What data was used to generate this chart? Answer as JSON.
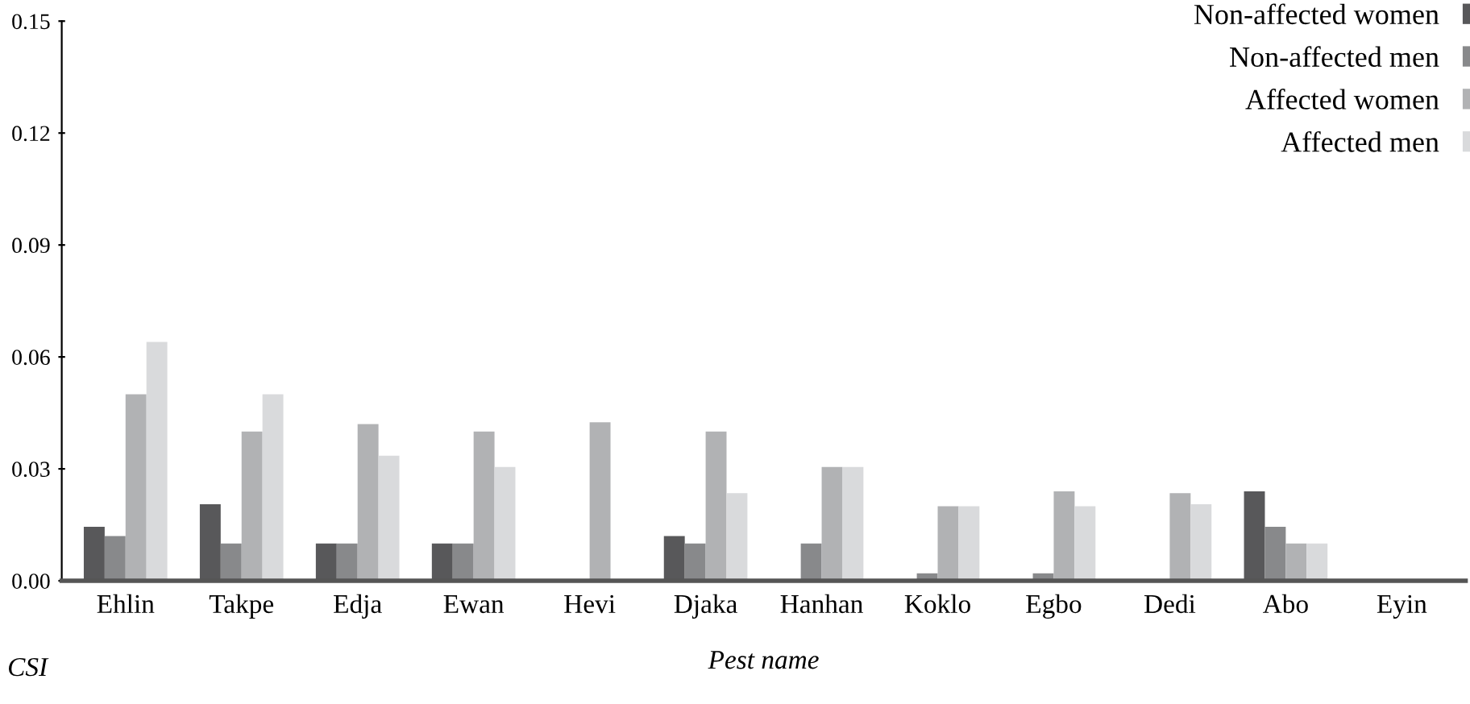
{
  "chart_data": {
    "type": "bar",
    "xlabel": "Pest name",
    "ylabel": "CSI",
    "categories": [
      "Ehlin",
      "Takpe",
      "Edja",
      "Ewan",
      "Hevi",
      "Djaka",
      "Hanhan",
      "Koklo",
      "Egbo",
      "Dedi",
      "Abo",
      "Eyin"
    ],
    "series": [
      {
        "name": "Non-affected women",
        "color": "#58585a",
        "values": [
          0.0145,
          0.0205,
          0.01,
          0.01,
          0,
          0.012,
          0,
          0,
          0,
          0,
          0.024,
          0
        ]
      },
      {
        "name": "Non-affected men",
        "color": "#88898b",
        "values": [
          0.012,
          0.01,
          0.01,
          0.01,
          0,
          0.01,
          0.01,
          0.002,
          0.002,
          0,
          0.0145,
          0
        ]
      },
      {
        "name": "Affected women",
        "color": "#b1b2b4",
        "values": [
          0.05,
          0.04,
          0.042,
          0.04,
          0.0425,
          0.04,
          0.0305,
          0.02,
          0.024,
          0.0235,
          0.01,
          0
        ]
      },
      {
        "name": "Affected men",
        "color": "#d9dadc",
        "values": [
          0.064,
          0.05,
          0.0335,
          0.0305,
          0,
          0.0235,
          0.0305,
          0.02,
          0.02,
          0.0205,
          0.01,
          0
        ]
      }
    ],
    "ylim": [
      0,
      0.15
    ],
    "yticks": [
      {
        "value": 0,
        "label": "0.00"
      },
      {
        "value": 0.03,
        "label": "0.03"
      },
      {
        "value": 0.06,
        "label": "0.06"
      },
      {
        "value": 0.09,
        "label": "0.09"
      },
      {
        "value": 0.12,
        "label": "0.12"
      },
      {
        "value": 0.15,
        "label": "0.15"
      }
    ],
    "grid": false,
    "legend": "top right"
  }
}
